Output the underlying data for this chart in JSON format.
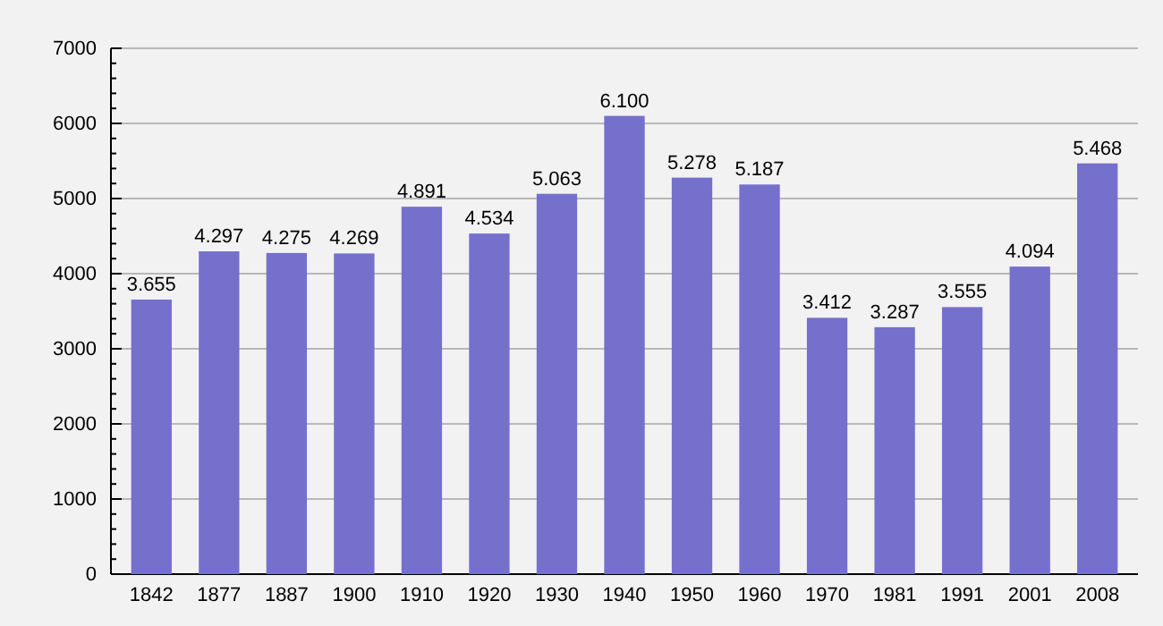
{
  "chart_data": {
    "type": "bar",
    "categories": [
      "1842",
      "1877",
      "1887",
      "1900",
      "1910",
      "1920",
      "1930",
      "1940",
      "1950",
      "1960",
      "1970",
      "1981",
      "1991",
      "2001",
      "2008"
    ],
    "values": [
      3655,
      4297,
      4275,
      4269,
      4891,
      4534,
      5063,
      6100,
      5278,
      5187,
      3412,
      3287,
      3555,
      4094,
      5468
    ],
    "value_labels": [
      "3.655",
      "4.297",
      "4.275",
      "4.269",
      "4.891",
      "4.534",
      "5.063",
      "6.100",
      "5.278",
      "5.187",
      "3.412",
      "3.287",
      "3.555",
      "4.094",
      "5.468"
    ],
    "color": "#7570cc",
    "ylim": [
      0,
      7000
    ],
    "yticks": [
      0,
      {
        "value": 200,
        "label": null
      },
      {
        "value": 400,
        "label": null
      },
      {
        "value": 600,
        "label": null
      },
      {
        "value": 800,
        "label": null
      },
      1000,
      {
        "value": 1200,
        "label": null
      },
      {
        "value": 1400,
        "label": null
      },
      {
        "value": 1600,
        "label": null
      },
      {
        "value": 1800,
        "label": null
      },
      2000,
      {
        "value": 2200,
        "label": null
      },
      {
        "value": 2400,
        "label": null
      },
      {
        "value": 2600,
        "label": null
      },
      {
        "value": 2800,
        "label": null
      },
      3000,
      {
        "value": 3200,
        "label": null
      },
      {
        "value": 3400,
        "label": null
      },
      {
        "value": 3600,
        "label": null
      },
      {
        "value": 3800,
        "label": null
      },
      4000,
      {
        "value": 4200,
        "label": null
      },
      {
        "value": 4400,
        "label": null
      },
      {
        "value": 4600,
        "label": null
      },
      {
        "value": 4800,
        "label": null
      },
      5000,
      {
        "value": 5200,
        "label": null
      },
      {
        "value": 5400,
        "label": null
      },
      {
        "value": 5600,
        "label": null
      },
      {
        "value": 5800,
        "label": null
      },
      6000,
      {
        "value": 6200,
        "label": null
      },
      {
        "value": 6400,
        "label": null
      },
      {
        "value": 6600,
        "label": null
      },
      {
        "value": 6800,
        "label": null
      },
      7000
    ],
    "grid": "y"
  }
}
